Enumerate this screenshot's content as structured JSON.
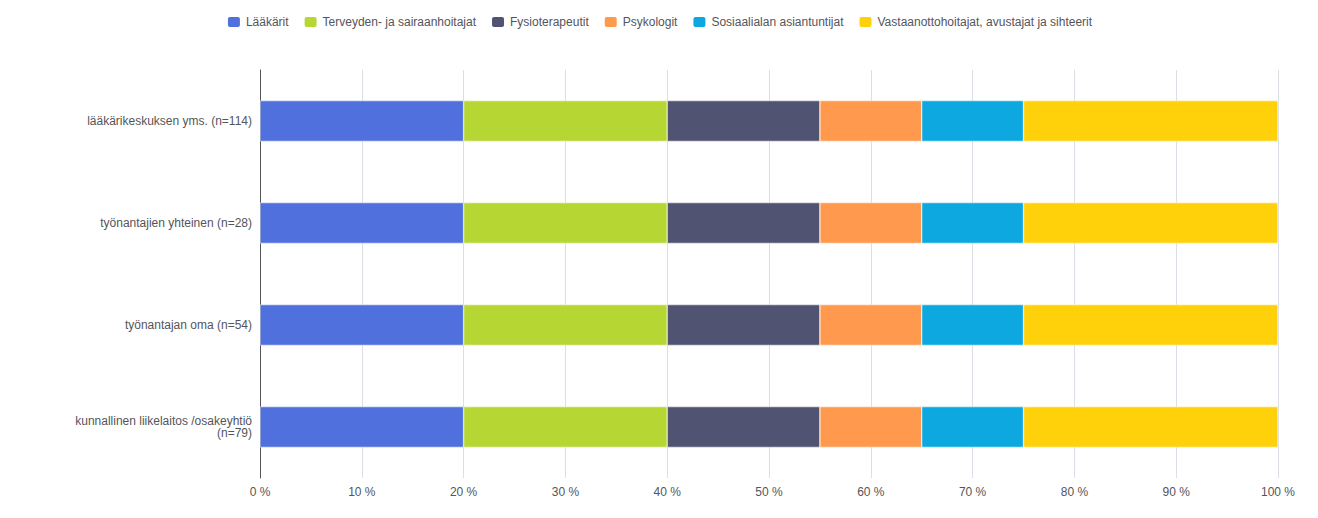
{
  "chart_data": {
    "type": "bar",
    "orientation": "horizontal",
    "stacked": true,
    "categories": [
      "lääkärikeskuksen yms. (n=114)",
      "työnantajien yhteinen (n=28)",
      "työnantajan oma (n=54)",
      "kunnallinen liikelaitos /osakeyhtiö\n(n=79)"
    ],
    "series": [
      {
        "name": "Lääkärit",
        "values": [
          20,
          20,
          20,
          20
        ]
      },
      {
        "name": "Terveyden- ja sairaanhoitajat",
        "values": [
          20,
          20,
          20,
          20
        ]
      },
      {
        "name": "Fysioterapeutit",
        "values": [
          15,
          15,
          15,
          15
        ]
      },
      {
        "name": "Psykologit",
        "values": [
          10,
          10,
          10,
          10
        ]
      },
      {
        "name": "Sosiaalialan asiantuntijat",
        "values": [
          10,
          10,
          10,
          10
        ]
      },
      {
        "name": "Vastaanottohoitajat, avustajat ja sihteerit",
        "values": [
          25,
          25,
          25,
          25
        ]
      }
    ],
    "xlim": [
      0,
      100
    ],
    "xticks": [
      {
        "value": 0,
        "label": "0 %"
      },
      {
        "value": 10,
        "label": "10 %"
      },
      {
        "value": 20,
        "label": "20 %"
      },
      {
        "value": 30,
        "label": "30 %"
      },
      {
        "value": 40,
        "label": "40 %"
      },
      {
        "value": 50,
        "label": "50 %"
      },
      {
        "value": 60,
        "label": "60 %"
      },
      {
        "value": 70,
        "label": "70 %"
      },
      {
        "value": 80,
        "label": "80 %"
      },
      {
        "value": 90,
        "label": "90 %"
      },
      {
        "value": 100,
        "label": "100 %"
      }
    ],
    "grid": true,
    "legend": "top"
  }
}
